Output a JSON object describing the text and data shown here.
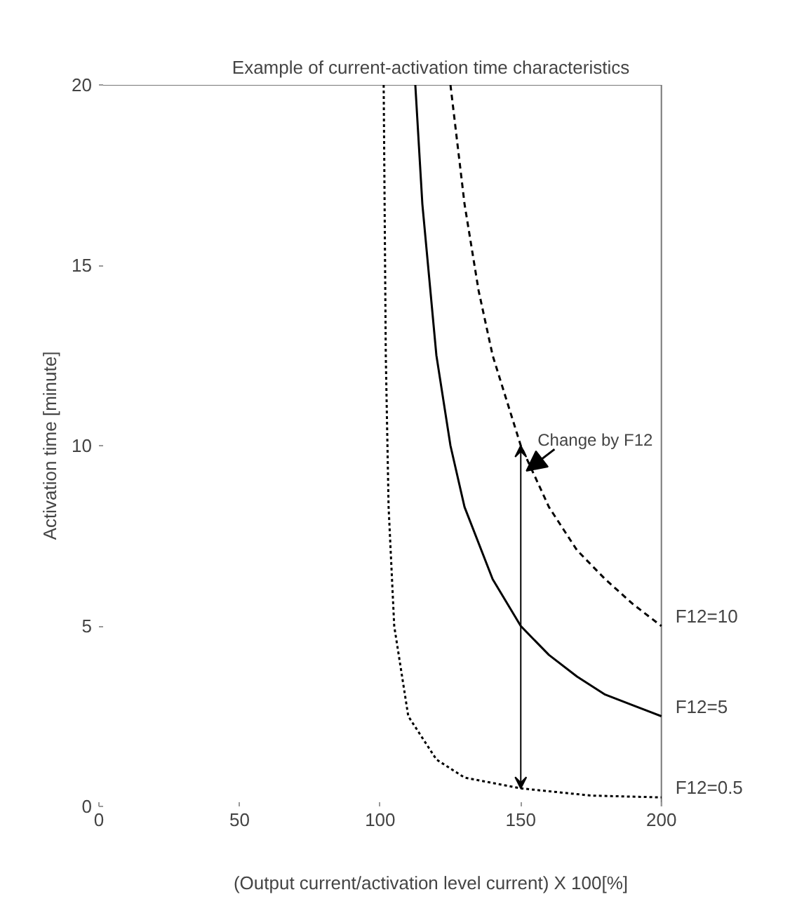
{
  "chart_data": {
    "type": "line",
    "title": "Example of current-activation time characteristics",
    "xlabel": "(Output current/activation level current) X 100[%]",
    "ylabel": "Activation time [minute]",
    "xlim": [
      0,
      200
    ],
    "ylim": [
      0,
      20
    ],
    "xticks": [
      0,
      50,
      100,
      150,
      200
    ],
    "yticks": [
      0,
      5,
      10,
      15,
      20
    ],
    "grid": false,
    "marker": "none",
    "series": [
      {
        "name": "F12=10",
        "color": "#000000",
        "line_style": "dashed",
        "x": [
          125,
          130,
          135,
          140,
          150,
          160,
          170,
          180,
          190,
          200
        ],
        "values": [
          20,
          16.7,
          14.3,
          12.5,
          10,
          8.3,
          7.1,
          6.3,
          5.6,
          5
        ]
      },
      {
        "name": "F12=5",
        "color": "#000000",
        "line_style": "solid",
        "x": [
          112.5,
          115,
          120,
          125,
          130,
          140,
          150,
          160,
          170,
          180,
          190,
          200
        ],
        "values": [
          20,
          16.7,
          12.5,
          10,
          8.3,
          6.3,
          5,
          4.2,
          3.6,
          3.1,
          2.8,
          2.5
        ]
      },
      {
        "name": "F12=0.5",
        "color": "#000000",
        "line_style": "dotted",
        "x": [
          101.25,
          102,
          103,
          105,
          110,
          120,
          130,
          150,
          175,
          200
        ],
        "values": [
          20,
          12.5,
          8.3,
          5,
          2.5,
          1.3,
          0.8,
          0.5,
          0.3,
          0.25
        ]
      }
    ],
    "annotations": [
      {
        "text": "Change by F12",
        "x": 152,
        "y": 9.3
      }
    ]
  }
}
